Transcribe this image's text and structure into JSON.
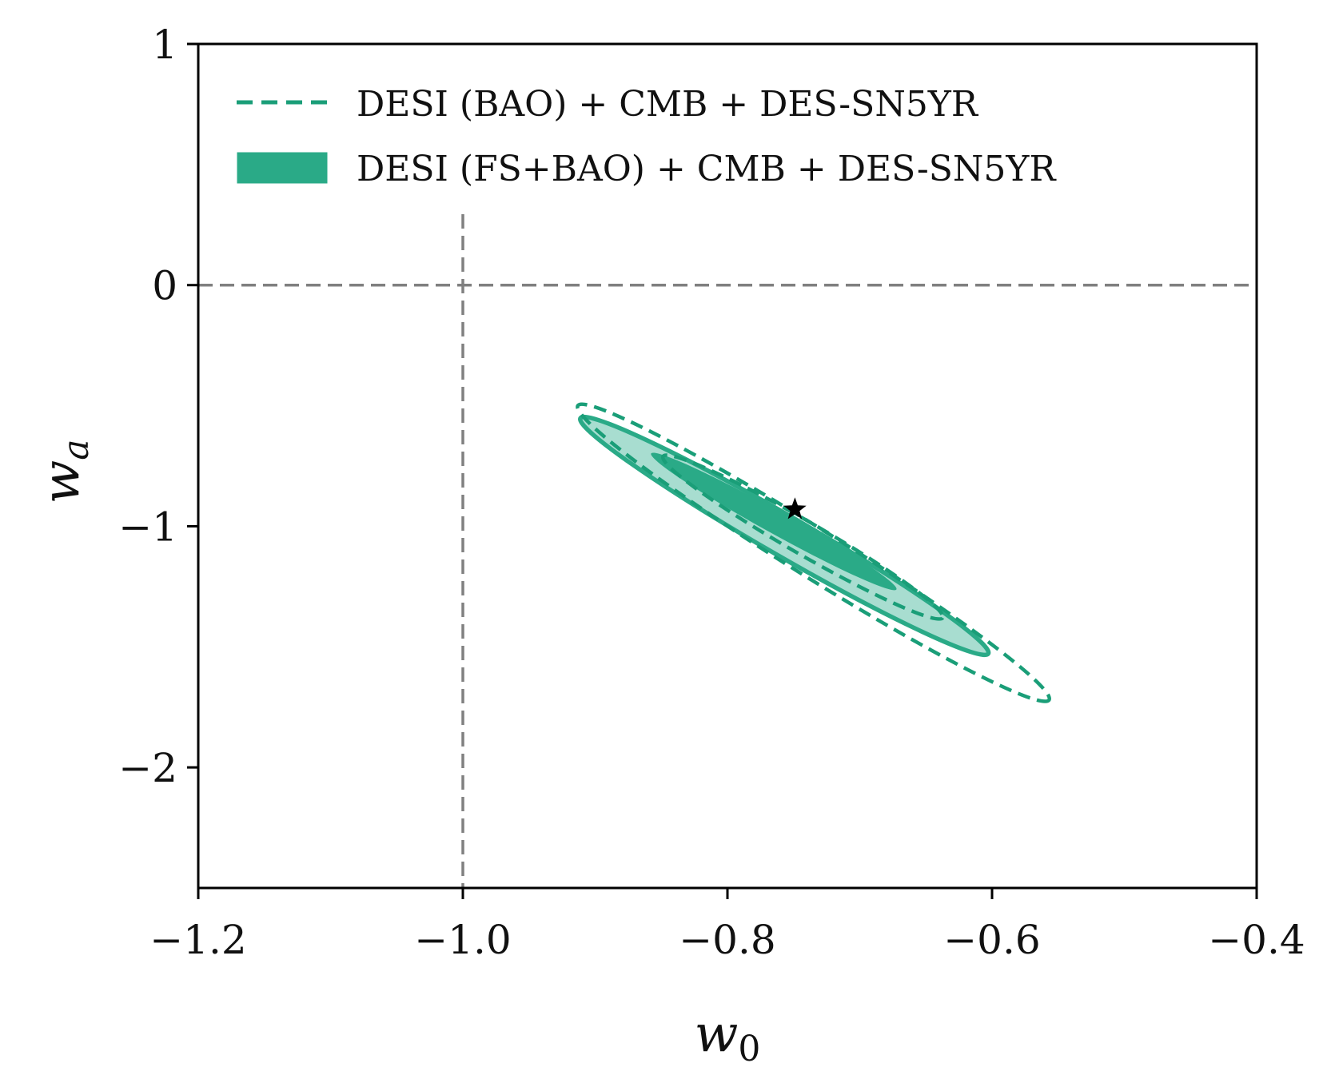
{
  "chart_data": {
    "type": "contour",
    "title": "",
    "xlabel": "w",
    "xlabel_sub": "0",
    "ylabel": "w",
    "ylabel_sub": "a",
    "xlim": [
      -1.2,
      -0.4
    ],
    "ylim": [
      -2.5,
      1.0
    ],
    "xticks": [
      -1.2,
      -1.0,
      -0.8,
      -0.6,
      -0.4
    ],
    "xtick_labels": [
      "−1.2",
      "−1.0",
      "−0.8",
      "−0.6",
      "−0.4"
    ],
    "yticks": [
      1,
      0,
      -1,
      -2
    ],
    "ytick_labels": [
      "1",
      "0",
      "−1",
      "−2"
    ],
    "reference_lines": {
      "w0": -1.0,
      "wa": 0.0,
      "color": "#808080",
      "style": "dashed"
    },
    "best_fit_point": {
      "w0": -0.749,
      "wa": -0.93,
      "marker": "star",
      "color": "#000000"
    },
    "legend_position": "top-left",
    "series": [
      {
        "name": "DESI (BAO) + CMB + DES-SN5YR",
        "style": "dashed",
        "color": "#1a9e78",
        "contours": [
          {
            "level": "68%",
            "center": [
              -0.743,
              -1.045
            ],
            "rx": 0.122,
            "ry": 0.068,
            "angle_deg": 30.0
          },
          {
            "level": "95%",
            "center": [
              -0.735,
              -1.11
            ],
            "rx": 0.21,
            "ry": 0.1,
            "angle_deg": 32.0
          }
        ]
      },
      {
        "name": "DESI (FS+BAO) + CMB + DES-SN5YR",
        "style": "filled",
        "color": "#2aaa87",
        "inner_color": "#2aaa87",
        "outer_color": "#a8ddd0",
        "contours": [
          {
            "level": "68%",
            "center": [
              -0.765,
              -0.98
            ],
            "rx": 0.106,
            "ry": 0.047,
            "angle_deg": 29.0
          },
          {
            "level": "95%",
            "center": [
              -0.757,
              -1.04
            ],
            "rx": 0.178,
            "ry": 0.083,
            "angle_deg": 30.0
          }
        ]
      }
    ]
  }
}
